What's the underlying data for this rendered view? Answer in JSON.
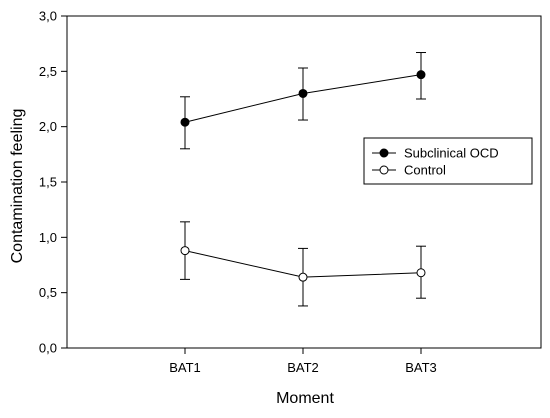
{
  "chart_data": {
    "type": "line",
    "title": "",
    "xlabel": "Moment",
    "ylabel": "Contamination feeling",
    "categories": [
      "BAT1",
      "BAT2",
      "BAT3"
    ],
    "ylim": [
      0,
      3
    ],
    "yticks": [
      "0,0",
      "0,5",
      "1,0",
      "1,5",
      "2,0",
      "2,5",
      "3,0"
    ],
    "grid": false,
    "legend_position": "right",
    "error_bars": true,
    "series": [
      {
        "name": "Subclinical OCD",
        "marker": "filled-circle",
        "color": "#000000",
        "values": [
          2.04,
          2.3,
          2.47
        ],
        "error_low": [
          1.8,
          2.06,
          2.25
        ],
        "error_high": [
          2.27,
          2.53,
          2.67
        ]
      },
      {
        "name": "Control",
        "marker": "open-circle",
        "color": "#000000",
        "values": [
          0.88,
          0.64,
          0.68
        ],
        "error_low": [
          0.62,
          0.38,
          0.45
        ],
        "error_high": [
          1.14,
          0.9,
          0.92
        ]
      }
    ]
  }
}
